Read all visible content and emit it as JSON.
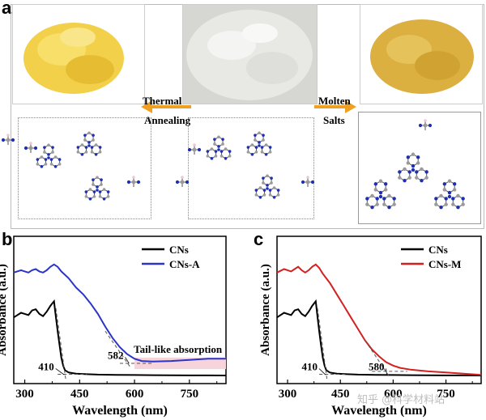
{
  "panels": {
    "a": "a",
    "b": "b",
    "c": "c"
  },
  "scheme": {
    "left_arrow_label_1": "Thermal",
    "left_arrow_label_2": "Annealing",
    "right_arrow_label_1": "Molten",
    "right_arrow_label_2": "Salts",
    "arrow_color": "#f0a020",
    "photo_colors": {
      "left": "#f2d04a",
      "middle": "#e8e8e4",
      "right": "#dcb040"
    },
    "atom_colors": {
      "carbon": "#9a9a9a",
      "nitrogen": "#1e2fb0",
      "hydrogen": "#f0c8d4"
    }
  },
  "chart_data": [
    {
      "type": "line",
      "xlabel": "Wavelength (nm)",
      "ylabel": "Absorbance (a.u.)",
      "xlim": [
        270,
        850
      ],
      "xticks": [
        300,
        450,
        600,
        750
      ],
      "legend_position": "top-right",
      "series": [
        {
          "name": "CNs",
          "color": "#000000",
          "x": [
            270,
            290,
            300,
            310,
            320,
            330,
            340,
            350,
            360,
            370,
            375,
            380,
            383,
            386,
            390,
            395,
            400,
            405,
            410,
            420,
            440,
            470,
            500,
            550,
            600,
            650,
            700,
            750,
            800,
            850
          ],
          "y": [
            0.52,
            0.56,
            0.55,
            0.54,
            0.58,
            0.59,
            0.55,
            0.53,
            0.57,
            0.62,
            0.64,
            0.66,
            0.58,
            0.5,
            0.4,
            0.28,
            0.17,
            0.1,
            0.06,
            0.04,
            0.03,
            0.025,
            0.022,
            0.02,
            0.018,
            0.017,
            0.016,
            0.015,
            0.015,
            0.014
          ]
        },
        {
          "name": "CNs-A",
          "color": "#2a35c8",
          "x": [
            270,
            290,
            300,
            310,
            320,
            330,
            340,
            350,
            360,
            370,
            380,
            390,
            400,
            420,
            440,
            460,
            480,
            500,
            520,
            540,
            560,
            580,
            600,
            620,
            650,
            700,
            750,
            800,
            850
          ],
          "y": [
            0.91,
            0.93,
            0.92,
            0.91,
            0.93,
            0.94,
            0.92,
            0.91,
            0.93,
            0.96,
            0.98,
            0.96,
            0.92,
            0.86,
            0.78,
            0.72,
            0.64,
            0.55,
            0.44,
            0.34,
            0.26,
            0.2,
            0.16,
            0.14,
            0.135,
            0.14,
            0.15,
            0.16,
            0.16
          ]
        }
      ],
      "annotations": {
        "tail_label": "Tail-like absorption",
        "onset_cns": "410",
        "onset_cnsa": "582"
      }
    },
    {
      "type": "line",
      "xlabel": "Wavelength (nm)",
      "ylabel": "Absorbance (a.u.)",
      "xlim": [
        270,
        850
      ],
      "xticks": [
        300,
        450,
        600,
        750
      ],
      "legend_position": "top-right",
      "series": [
        {
          "name": "CNs",
          "color": "#000000",
          "x": [
            270,
            290,
            300,
            310,
            320,
            330,
            340,
            350,
            360,
            370,
            375,
            380,
            383,
            386,
            390,
            395,
            400,
            405,
            410,
            420,
            440,
            470,
            500,
            550,
            600,
            650,
            700,
            750,
            800,
            850
          ],
          "y": [
            0.52,
            0.56,
            0.55,
            0.54,
            0.58,
            0.59,
            0.55,
            0.53,
            0.57,
            0.62,
            0.64,
            0.66,
            0.58,
            0.5,
            0.4,
            0.28,
            0.17,
            0.1,
            0.06,
            0.04,
            0.03,
            0.025,
            0.022,
            0.02,
            0.018,
            0.017,
            0.016,
            0.015,
            0.015,
            0.014
          ]
        },
        {
          "name": "CNs-M",
          "color": "#d42020",
          "x": [
            270,
            290,
            300,
            310,
            320,
            330,
            340,
            350,
            360,
            370,
            380,
            390,
            400,
            420,
            440,
            460,
            480,
            500,
            520,
            540,
            560,
            580,
            600,
            620,
            650,
            700,
            750,
            800,
            850
          ],
          "y": [
            0.91,
            0.94,
            0.93,
            0.92,
            0.94,
            0.96,
            0.93,
            0.91,
            0.93,
            0.96,
            0.98,
            0.95,
            0.9,
            0.82,
            0.72,
            0.62,
            0.52,
            0.42,
            0.32,
            0.24,
            0.18,
            0.13,
            0.1,
            0.08,
            0.065,
            0.05,
            0.04,
            0.03,
            0.02
          ]
        }
      ],
      "annotations": {
        "onset_cns": "410",
        "onset_cnsm": "580"
      }
    }
  ],
  "watermark": "知乎 @科学材料站"
}
